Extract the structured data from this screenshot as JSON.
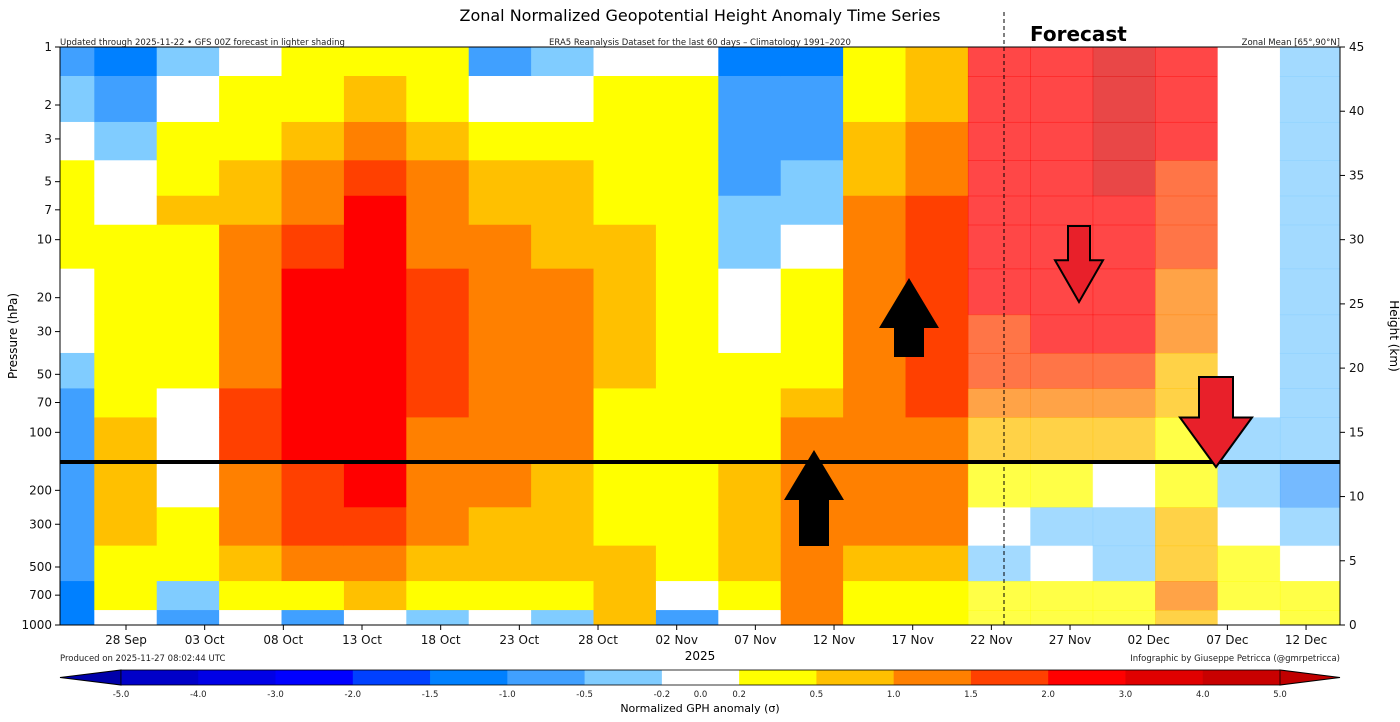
{
  "chart_data": {
    "type": "heatmap",
    "title": "Zonal Normalized Geopotential Height Anomaly Time Series",
    "subtitle_left": "Updated through 2025-11-22 • GFS 00Z forecast in lighter shading",
    "subtitle_center": "ERA5 Reanalysis Dataset for the last 60 days – Climatology 1991–2020",
    "subtitle_right": "Zonal Mean [65°,90°N]",
    "forecast_label": "Forecast",
    "forecast_start": "22 Nov",
    "ylabel": "Pressure (hPa)",
    "y2label": "Height (km)",
    "xlabel": "2025",
    "produced": "Produced on 2025-11-27 08:02:44 UTC",
    "credit": "Infographic by Giuseppe Petricca (@gmrpetricca)",
    "x_ticks": [
      "28 Sep",
      "03 Oct",
      "08 Oct",
      "13 Oct",
      "18 Oct",
      "23 Oct",
      "28 Oct",
      "02 Nov",
      "07 Nov",
      "12 Nov",
      "17 Nov",
      "22 Nov",
      "27 Nov",
      "02 Dec",
      "07 Dec",
      "12 Dec"
    ],
    "y_ticks": [
      "1",
      "2",
      "3",
      "5",
      "7",
      "10",
      "20",
      "30",
      "50",
      "70",
      "100",
      "200",
      "300",
      "500",
      "700",
      "1000"
    ],
    "y2_ticks": [
      "0",
      "5",
      "10",
      "15",
      "20",
      "25",
      "30",
      "35",
      "40",
      "45"
    ],
    "y_scale": "log",
    "ylim": [
      1000,
      1
    ],
    "y2lim": [
      0,
      45
    ],
    "colorbar": {
      "label": "Normalized GPH anomaly (σ)",
      "ticks": [
        "-5.0",
        "-4.0",
        "-3.0",
        "-2.0",
        "-1.5",
        "-1.0",
        "-0.5",
        "-0.2",
        "0.0",
        "0.2",
        "0.5",
        "1.0",
        "1.5",
        "2.0",
        "3.0",
        "4.0",
        "5.0"
      ],
      "bounds": [
        -5,
        -4,
        -3,
        -2,
        -1.5,
        -1,
        -0.5,
        -0.2,
        0.2,
        0.5,
        1,
        1.5,
        2,
        3,
        4,
        5
      ],
      "colors": [
        "#0000c8",
        "#0000e6",
        "#0000ff",
        "#0040ff",
        "#0080ff",
        "#40a0ff",
        "#80ccff",
        "#ffffff",
        "#ffff00",
        "#ffc000",
        "#ff8000",
        "#ff4000",
        "#ff0000",
        "#e00000",
        "#c80000"
      ]
    },
    "columns": [
      "24 Sep",
      "28 Sep",
      "02 Oct",
      "06 Oct",
      "10 Oct",
      "14 Oct",
      "18 Oct",
      "22 Oct",
      "26 Oct",
      "30 Oct",
      "03 Nov",
      "07 Nov",
      "11 Nov",
      "15 Nov",
      "19 Nov",
      "23 Nov",
      "27 Nov",
      "01 Dec",
      "05 Dec",
      "09 Dec",
      "13 Dec"
    ],
    "levels_hPa": [
      1,
      2,
      3,
      5,
      7,
      10,
      20,
      30,
      50,
      70,
      100,
      200,
      300,
      500,
      700,
      1000
    ],
    "values": [
      [
        -0.7,
        -0.3,
        0,
        0.35,
        0.35,
        0.35,
        0,
        0,
        -0.3,
        -0.7,
        -0.7,
        -0.7,
        -0.7,
        -0.7,
        -1.2,
        -1.2
      ],
      [
        -1.2,
        -0.7,
        -0.3,
        0,
        0,
        0.35,
        0.35,
        0.35,
        0.35,
        0.35,
        0.75,
        0.75,
        0.75,
        0.35,
        0.35,
        0
      ],
      [
        -0.3,
        0,
        0.35,
        0.35,
        0.75,
        0.35,
        0.35,
        0.35,
        0.35,
        0,
        0,
        0,
        0.35,
        0.35,
        -0.3,
        -0.7
      ],
      [
        0,
        0.35,
        0.35,
        0.75,
        0.75,
        1.25,
        1.25,
        1.25,
        1.25,
        1.75,
        1.75,
        1.25,
        1.25,
        0.75,
        0.35,
        0
      ],
      [
        0.35,
        0.35,
        0.75,
        1.25,
        1.25,
        1.75,
        2.5,
        2.5,
        2.5,
        2.5,
        2.5,
        1.75,
        1.75,
        1.25,
        0.35,
        -0.7
      ],
      [
        0.35,
        0.75,
        1.25,
        1.75,
        2.5,
        2.5,
        2.5,
        2.5,
        2.5,
        2.5,
        2.5,
        2.5,
        1.75,
        1.25,
        0.75,
        0
      ],
      [
        0.35,
        0.35,
        0.75,
        1.25,
        1.25,
        1.25,
        1.75,
        1.75,
        1.75,
        1.75,
        1.25,
        1.25,
        1.25,
        0.75,
        0.35,
        -0.3
      ],
      [
        -0.7,
        0,
        0.35,
        0.75,
        0.75,
        1.25,
        1.25,
        1.25,
        1.25,
        1.25,
        1.25,
        1.25,
        0.75,
        0.75,
        0.35,
        0
      ],
      [
        -0.3,
        0,
        0.35,
        0.75,
        0.75,
        0.75,
        1.25,
        1.25,
        1.25,
        1.25,
        1.25,
        0.75,
        0.75,
        0.75,
        0.35,
        -0.3
      ],
      [
        0,
        0.35,
        0.35,
        0.35,
        0.35,
        0.75,
        0.75,
        0.75,
        0.75,
        0.35,
        0.35,
        0.35,
        0.35,
        0.75,
        0.75,
        0.75
      ],
      [
        0,
        0.35,
        0.35,
        0.35,
        0.35,
        0.35,
        0.35,
        0.35,
        0.35,
        0.35,
        0.35,
        0.35,
        0.35,
        0.35,
        0,
        -0.7
      ],
      [
        -1.2,
        -0.7,
        -0.7,
        -0.7,
        -0.3,
        -0.3,
        0,
        0,
        0.35,
        0.35,
        0.35,
        0.75,
        0.75,
        0.75,
        0.35,
        0
      ],
      [
        -1.2,
        -0.7,
        -0.7,
        -0.3,
        -0.3,
        0,
        0.35,
        0.35,
        0.35,
        0.75,
        1.25,
        1.25,
        1.25,
        1.25,
        1.25,
        1.25
      ],
      [
        0.35,
        0.35,
        0.75,
        0.75,
        1.25,
        1.25,
        1.25,
        1.25,
        1.25,
        1.25,
        1.25,
        1.25,
        1.25,
        0.75,
        0.35,
        0.35
      ],
      [
        0.75,
        0.75,
        1.25,
        1.25,
        1.75,
        1.75,
        1.75,
        1.75,
        1.75,
        1.75,
        1.25,
        1.25,
        1.25,
        0.75,
        0.35,
        0.35
      ],
      [
        2.5,
        2.5,
        2.5,
        2.5,
        2.5,
        2.5,
        2.5,
        1.75,
        1.75,
        1.25,
        0.75,
        0.35,
        0,
        -0.3,
        0.35,
        0.35
      ],
      [
        2.5,
        2.5,
        2.5,
        2.5,
        2.5,
        2.5,
        2.5,
        2.5,
        1.75,
        1.25,
        0.75,
        0.35,
        -0.3,
        0,
        0.35,
        0.35
      ],
      [
        3.5,
        3.5,
        3.5,
        3.5,
        2.5,
        2.5,
        2.5,
        2.5,
        1.75,
        1.25,
        0.75,
        0,
        -0.3,
        -0.3,
        0.35,
        0.35
      ],
      [
        2.5,
        2.5,
        2.5,
        1.75,
        1.75,
        1.75,
        1.25,
        1.25,
        0.75,
        0.75,
        0.35,
        0.35,
        0.75,
        0.75,
        1.25,
        0.75
      ],
      [
        0,
        0,
        0,
        0,
        0,
        0,
        0,
        0,
        0,
        0,
        -0.3,
        -0.3,
        0,
        0.35,
        0.35,
        0
      ],
      [
        -0.3,
        -0.3,
        -0.3,
        -0.3,
        -0.3,
        -0.3,
        -0.3,
        -0.3,
        -0.3,
        -0.3,
        -0.3,
        -0.7,
        -0.3,
        0,
        0.35,
        0.35
      ]
    ],
    "forecast_columns_from": 15,
    "annotations": {
      "horizontal_line_hPa": 140,
      "up_arrows": [
        "10 Nov",
        "15 Nov"
      ],
      "down_arrows": [
        "27 Nov",
        "06 Dec"
      ]
    },
    "grid": false
  }
}
